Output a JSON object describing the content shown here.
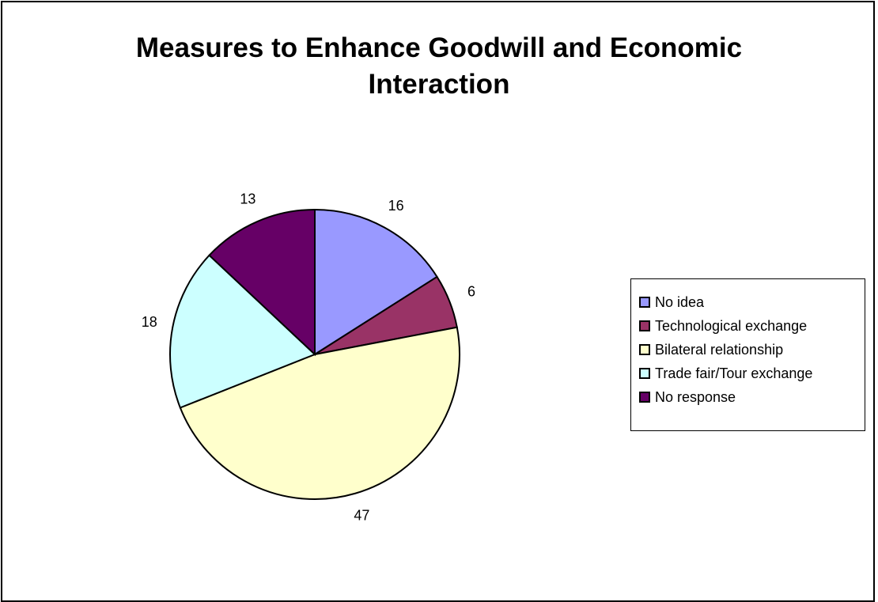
{
  "chart_data": {
    "type": "pie",
    "title_lines": [
      "Measures to Enhance Goodwill and Economic",
      "Interaction"
    ],
    "categories": [
      "No idea",
      "Technological exchange",
      "Bilateral relationship",
      "Trade fair/Tour exchange",
      "No response"
    ],
    "values": [
      16,
      6,
      47,
      18,
      13
    ],
    "data_labels": [
      "16",
      "6",
      "47",
      "18",
      "13"
    ],
    "colors": [
      "#9999ff",
      "#993366",
      "#ffffcc",
      "#ccffff",
      "#660066"
    ],
    "start_angle_deg": 0,
    "direction": "clockwise",
    "legend_position": "right"
  }
}
